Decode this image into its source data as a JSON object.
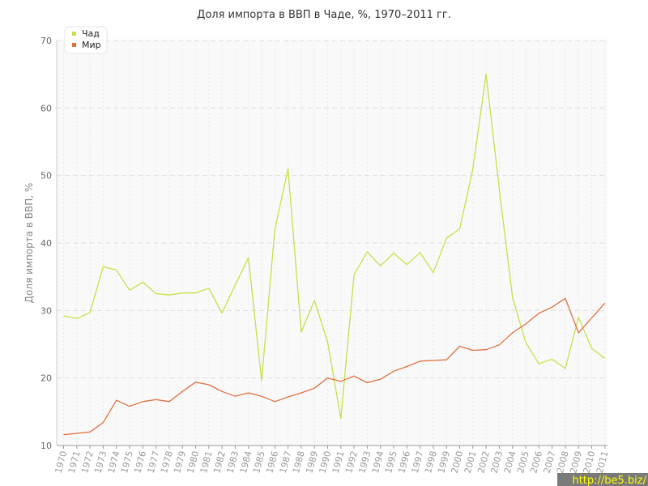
{
  "chart_data": {
    "type": "line",
    "title": "Доля импорта в ВВП в Чаде, %, 1970–2011 гг.",
    "xlabel": "",
    "ylabel": "Доля импорта в ВВП, %",
    "ylim": [
      10,
      70
    ],
    "yticks": [
      10,
      20,
      30,
      40,
      50,
      60,
      70
    ],
    "grid": true,
    "legend_position": "top-left",
    "x": [
      "1970",
      "1971",
      "1972",
      "1973",
      "1974",
      "1975",
      "1976",
      "1977",
      "1978",
      "1979",
      "1980",
      "1981",
      "1982",
      "1983",
      "1984",
      "1985",
      "1986",
      "1987",
      "1988",
      "1989",
      "1990",
      "1991",
      "1992",
      "1993",
      "1994",
      "1995",
      "1996",
      "1997",
      "1998",
      "1999",
      "2000",
      "2001",
      "2002",
      "2003",
      "2004",
      "2005",
      "2006",
      "2007",
      "2008",
      "2009",
      "2010",
      "2011"
    ],
    "series": [
      {
        "name": "Чад",
        "color": "#c5e04a",
        "values": [
          29.2,
          28.8,
          29.7,
          36.5,
          36.0,
          33.0,
          34.2,
          32.5,
          32.3,
          32.6,
          32.6,
          33.3,
          29.6,
          33.8,
          37.8,
          19.6,
          42.0,
          51.0,
          26.8,
          31.5,
          25.3,
          14.0,
          35.3,
          38.7,
          36.6,
          38.5,
          36.8,
          38.6,
          35.6,
          40.7,
          42.1,
          51.0,
          65.0,
          48.0,
          32.0,
          25.3,
          22.1,
          22.8,
          21.4,
          29.0,
          24.4,
          22.9
        ]
      },
      {
        "name": "Мир",
        "color": "#e07040",
        "values": [
          11.6,
          11.8,
          12.0,
          13.4,
          16.7,
          15.8,
          16.5,
          16.8,
          16.5,
          18.0,
          19.4,
          19.0,
          18.0,
          17.3,
          17.8,
          17.3,
          16.5,
          17.2,
          17.8,
          18.5,
          20.0,
          19.5,
          20.3,
          19.3,
          19.8,
          21.0,
          21.7,
          22.5,
          22.6,
          22.7,
          24.7,
          24.1,
          24.2,
          24.9,
          26.7,
          28.0,
          29.6,
          30.5,
          31.8,
          26.7,
          28.9,
          31.1
        ]
      }
    ]
  },
  "watermark": "http://be5.biz/"
}
